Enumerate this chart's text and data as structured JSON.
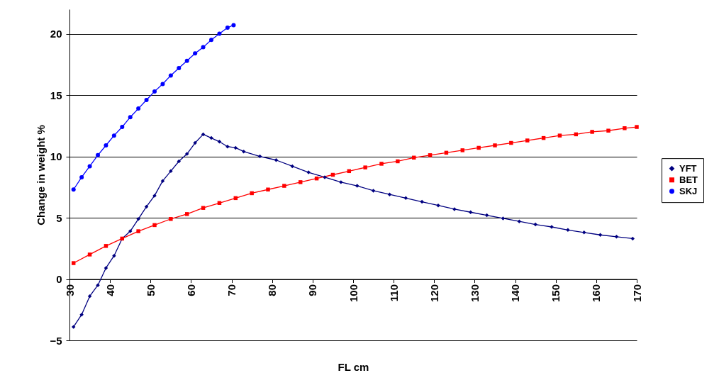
{
  "chart_data": {
    "type": "line",
    "xlabel": "FL cm",
    "ylabel": "Change in weight %",
    "xlim": [
      30,
      170
    ],
    "xticks": [
      30,
      40,
      50,
      60,
      70,
      80,
      90,
      100,
      110,
      120,
      130,
      140,
      150,
      160,
      170
    ],
    "ylim": [
      -5,
      22
    ],
    "yticks": [
      -5,
      0,
      5,
      10,
      15,
      20
    ],
    "grid": "y",
    "legend": "right",
    "series": [
      {
        "name": "YFT",
        "color": "#000080",
        "marker": "diamond",
        "x": [
          31,
          33,
          35,
          37,
          39,
          41,
          43,
          45,
          47,
          49,
          51,
          53,
          55,
          57,
          59,
          61,
          63,
          65,
          67,
          69,
          71,
          73,
          77,
          81,
          85,
          89,
          93,
          97,
          101,
          105,
          109,
          113,
          117,
          121,
          125,
          129,
          133,
          137,
          141,
          145,
          149,
          153,
          157,
          161,
          165,
          169
        ],
        "values": [
          -3.9,
          -2.9,
          -1.4,
          -0.5,
          0.9,
          1.9,
          3.3,
          3.9,
          4.9,
          5.9,
          6.8,
          8.0,
          8.8,
          9.6,
          10.2,
          11.1,
          11.8,
          11.5,
          11.2,
          10.8,
          10.7,
          10.4,
          10.0,
          9.7,
          9.2,
          8.7,
          8.3,
          7.9,
          7.6,
          7.2,
          6.9,
          6.6,
          6.3,
          6.0,
          5.7,
          5.45,
          5.2,
          4.95,
          4.7,
          4.45,
          4.25,
          4.0,
          3.8,
          3.6,
          3.45,
          3.3
        ]
      },
      {
        "name": "BET",
        "color": "#ff0000",
        "marker": "square",
        "x": [
          31,
          35,
          39,
          43,
          47,
          51,
          55,
          59,
          63,
          67,
          71,
          75,
          79,
          83,
          87,
          91,
          95,
          99,
          103,
          107,
          111,
          115,
          119,
          123,
          127,
          131,
          135,
          139,
          143,
          147,
          151,
          155,
          159,
          163,
          167,
          170
        ],
        "values": [
          1.3,
          2.0,
          2.7,
          3.3,
          3.9,
          4.4,
          4.9,
          5.3,
          5.8,
          6.2,
          6.6,
          7.0,
          7.3,
          7.6,
          7.9,
          8.2,
          8.5,
          8.8,
          9.1,
          9.4,
          9.6,
          9.9,
          10.1,
          10.3,
          10.5,
          10.7,
          10.9,
          11.1,
          11.3,
          11.5,
          11.7,
          11.8,
          12.0,
          12.1,
          12.3,
          12.4
        ]
      },
      {
        "name": "SKJ",
        "color": "#0000ff",
        "marker": "circle",
        "x": [
          31,
          33,
          35,
          37,
          39,
          41,
          43,
          45,
          47,
          49,
          51,
          53,
          55,
          57,
          59,
          61,
          63,
          65,
          67,
          69,
          70.5
        ],
        "values": [
          7.3,
          8.3,
          9.2,
          10.1,
          10.9,
          11.7,
          12.4,
          13.2,
          13.9,
          14.6,
          15.3,
          15.9,
          16.6,
          17.2,
          17.8,
          18.4,
          18.9,
          19.5,
          20.0,
          20.5,
          20.7
        ]
      }
    ]
  }
}
